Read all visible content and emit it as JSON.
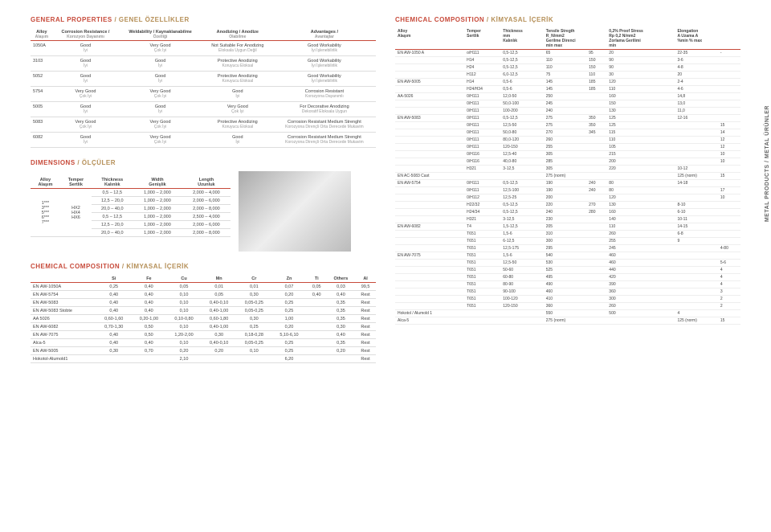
{
  "side_label": "METAL PRODUCTS / METAL ÜRÜNLER",
  "headings": {
    "gp": {
      "en": "GENERAL PROPERTIES",
      "tr": " / GENEL ÖZELLİKLER"
    },
    "dim": {
      "en": "DIMENSIONS",
      "tr": " / ÖLÇÜLER"
    },
    "comp": {
      "en": "CHEMICAL COMPOSITION",
      "tr": " / KİMYASAL İÇERİK"
    },
    "cc": {
      "en": "CHEMICAL COMPOSITION",
      "tr": " / KİMYASAL İÇERİK"
    }
  },
  "gp": {
    "cols": [
      {
        "en": "Alloy",
        "tr": "Alaşım"
      },
      {
        "en": "Corrosion Resistance /",
        "tr": "Korozyon Dayanımı"
      },
      {
        "en": "Weldability / Kaynaklanabilme",
        "tr": "Özelliği"
      },
      {
        "en": "Anodizing / Anodize",
        "tr": "Olabilme"
      },
      {
        "en": "Advantages /",
        "tr": "Avantajlar"
      }
    ],
    "rows": [
      {
        "a": "1050A",
        "cells": [
          "Good / İyi",
          "Very Good / Çok İyi",
          "Not Suitable For Anodizing / Eloksala Uygun Değil",
          "Good Workability / İyi İşlenebilirlik"
        ]
      },
      {
        "a": "3103",
        "cells": [
          "Good / İyi",
          "Good / İyi",
          "Protective Anodizing / Koruyucu Eloksal",
          "Good Workability / İyi İşlenebilirlik"
        ]
      },
      {
        "a": "5052",
        "cells": [
          "Good / İyi",
          "Good / İyi",
          "Protective Anodizing / Koruyucu Eloksal",
          "Good Workability / İyi İşlenebilirlik"
        ]
      },
      {
        "a": "5754",
        "cells": [
          "Very Good / Çok İyi",
          "Very Good / Çok İyi",
          "Good / İyi",
          "Corrosion Resistant / Korozyona Dayanımlı"
        ]
      },
      {
        "a": "5005",
        "cells": [
          "Good / İyi",
          "Good / İyi",
          "Very Good / Çok İyi",
          "For Decorative Anodizing / Dekoratif Eloksala Uygun"
        ]
      },
      {
        "a": "5083",
        "cells": [
          "Very Good / Çok İyi",
          "Very Good / Çok İyi",
          "Protective Anodizing / Koruyucu Eloksal",
          "Corrosion Resistant Medium Strenght / Korozyona Dirençli Orta Derecede Mukavim"
        ]
      },
      {
        "a": "6082",
        "cells": [
          "Good / İyi",
          "Very Good / Çok İyi",
          "Good / İyi",
          "Corrosion Resistant Medium Strenght / Korozyona Dirençli Orta Derecede Mukavim"
        ]
      }
    ]
  },
  "dim": {
    "cols": [
      {
        "en": "Alloy",
        "tr": "Alaşım"
      },
      {
        "en": "Temper",
        "tr": "Sertlik"
      },
      {
        "en": "Thickness",
        "tr": "Kalınlık"
      },
      {
        "en": "Width",
        "tr": "Genişlik"
      },
      {
        "en": "Length",
        "tr": "Uzunluk"
      }
    ],
    "alloys": "1*** 3*** 5*** 6*** 7***",
    "tempers": "HX2 HX4 HX6",
    "rows": [
      [
        "0,5 – 12,5",
        "1,000 – 2,000",
        "2,000 – 4,000"
      ],
      [
        "12,5 – 20,0",
        "1,000 – 2,000",
        "2,000 – 6,000"
      ],
      [
        "20,0 – 40,0",
        "1,000 – 2,000",
        "2,000 – 8,000"
      ],
      [
        "0,5 – 12,5",
        "1,000 – 2,000",
        "2,500 – 4,000"
      ],
      [
        "12,5 – 20,0",
        "1,000 – 2,000",
        "2,000 – 6,000"
      ],
      [
        "20,0 – 40,0",
        "1,000 – 2,000",
        "2,000 – 8,000"
      ]
    ]
  },
  "comp": {
    "cols": [
      "",
      "Si",
      "Fe",
      "Cu",
      "Mn",
      "Cr",
      "Zn",
      "Ti",
      "Others",
      "Al"
    ],
    "rows": [
      [
        "EN AW-1050A",
        "0,25",
        "0,40",
        "0,05",
        "0,01",
        "0,01",
        "0,07",
        "0,05",
        "0,03",
        "99,5"
      ],
      [
        "EN AW-5754",
        "0,40",
        "0,40",
        "0,10",
        "0,05",
        "0,30",
        "0,20",
        "0,40",
        "0,40",
        "Rest"
      ],
      [
        "EN AW-5083",
        "0,40",
        "0,40",
        "0,10",
        "0,40-0,10",
        "0,05-0,25",
        "0,25",
        "",
        "0,35",
        "Rest"
      ],
      [
        "EN AW-5083 Stobte",
        "0,40",
        "0,40",
        "0,10",
        "0,40-1,00",
        "0,05-0,25",
        "0,25",
        "",
        "0,35",
        "Rest"
      ],
      [
        "AA 5026",
        "0,60-1,60",
        "0,20-1,00",
        "0,10-0,80",
        "0,60-1,80",
        "0,30",
        "1,00",
        "",
        "0,35",
        "Rest"
      ],
      [
        "EN AW-6082",
        "0,70-1,30",
        "0,50",
        "0,10",
        "0,40-1,00",
        "0,25",
        "0,20",
        "",
        "0,30",
        "Rest"
      ],
      [
        "EN AW-7075",
        "0,40",
        "0,50",
        "1,20-2,00",
        "0,30",
        "0,18-0,28",
        "5,10-6,10",
        "",
        "0,40",
        "Rest"
      ],
      [
        "Alca-5",
        "0,40",
        "0,40",
        "0,10",
        "0,40-0,10",
        "0,05-0,25",
        "0,25",
        "",
        "0,35",
        "Rest"
      ],
      [
        "EN AW-5005",
        "0,30",
        "0,70",
        "0,20",
        "0,20",
        "0,10",
        "0,25",
        "",
        "0,20",
        "Rest"
      ],
      [
        "Hokotol-Alumold1",
        "",
        "",
        "2,10",
        "",
        "",
        "6,20",
        "",
        "",
        "Rest"
      ]
    ]
  },
  "cc": {
    "header": {
      "alloy": {
        "en": "Alloy",
        "tr": "Alaşım"
      },
      "temper": {
        "en": "Temper",
        "tr": "Sertlik"
      },
      "thick": {
        "en": "Thickness",
        "tr": "mm",
        "sub": "Kalınlık"
      },
      "tensile": {
        "en": "Tensile Stregth",
        "tr": "R_N/mm2",
        "sub": "Gerilme Direnci",
        "mm": "min    max"
      },
      "proof": {
        "en": "0,2% Proof Stress",
        "tr": "Rp 0,2 N/mm2",
        "sub": "Zorlama Gerilimi",
        "mm": "min"
      },
      "elong": {
        "en": "Elongation",
        "tr": "A  Uzama  A",
        "mm": "%min    % max"
      }
    },
    "rows": [
      [
        "EN AW-1050 A",
        "o/H111",
        "0,5-12,5",
        "65",
        "95",
        "20",
        "22-35",
        "-"
      ],
      [
        "",
        "H14",
        "0,5-12,5",
        "110",
        "150",
        "90",
        "3-6",
        ""
      ],
      [
        "",
        "H24",
        "0,5-12,5",
        "110",
        "150",
        "90",
        "4-8",
        ""
      ],
      [
        "",
        "H112",
        "6,0-12,5",
        "75",
        "110",
        "30",
        "20",
        ""
      ],
      [
        "EN AW-5005",
        "H14",
        "0,5-6",
        "145",
        "185",
        "120",
        "2-4",
        ""
      ],
      [
        "",
        "H24/H34",
        "0,5-6",
        "145",
        "185",
        "110",
        "4-6",
        ""
      ],
      [
        "AA-5026",
        "0/H111",
        "12,0-50",
        "250",
        "",
        "160",
        "14,8",
        ""
      ],
      [
        "",
        "0/H111",
        "50,0-100",
        "245",
        "",
        "150",
        "13,0",
        ""
      ],
      [
        "",
        "0/H111",
        "100-200",
        "240",
        "",
        "130",
        "11,0",
        ""
      ],
      [
        "EN AW-5083",
        "0/H111",
        "0,5-12,5",
        "275",
        "350",
        "125",
        "12-16",
        ""
      ],
      [
        "",
        "0/H111",
        "12,5-50",
        "275",
        "350",
        "125",
        "",
        "15"
      ],
      [
        "",
        "0/H111",
        "50,0-80",
        "270",
        "345",
        "115",
        "",
        "14"
      ],
      [
        "",
        "0/H111",
        "80,0-120",
        "260",
        "",
        "110",
        "",
        "12"
      ],
      [
        "",
        "0/H111",
        "120-150",
        "255",
        "",
        "105",
        "",
        "12"
      ],
      [
        "",
        "0/H116",
        "12,5-40",
        "305",
        "",
        "215",
        "",
        "10"
      ],
      [
        "",
        "0/H116",
        "40,0-80",
        "285",
        "",
        "200",
        "",
        "10"
      ],
      [
        "",
        "H321",
        "3-12,5",
        "305",
        "",
        "220",
        "10-12",
        ""
      ],
      [
        "EN AC-5083 Cast",
        "",
        "",
        "275 (norm)",
        "",
        "",
        "125 (norm)",
        "15"
      ],
      [
        "EN AW-5754",
        "0/H111",
        "0,5-12,5",
        "190",
        "240",
        "80",
        "14-18",
        ""
      ],
      [
        "",
        "0/H111",
        "12,5-100",
        "190",
        "240",
        "80",
        "",
        "17"
      ],
      [
        "",
        "0/H112",
        "12,5-25",
        "200",
        "",
        "120",
        "",
        "10"
      ],
      [
        "",
        "H22/32",
        "0,5-12,5",
        "220",
        "270",
        "130",
        "8-10",
        ""
      ],
      [
        "",
        "H24/34",
        "0,5-12,5",
        "240",
        "280",
        "160",
        "6-10",
        ""
      ],
      [
        "",
        "H321",
        "3-12,5",
        "230",
        "",
        "140",
        "10-11",
        ""
      ],
      [
        "EN AW-6082",
        "T4",
        "1,5-12,5",
        "205",
        "",
        "110",
        "14-15",
        ""
      ],
      [
        "",
        "T651",
        "1,5-6",
        "310",
        "",
        "260",
        "6-8",
        ""
      ],
      [
        "",
        "T651",
        "6-12,5",
        "300",
        "",
        "255",
        "9",
        ""
      ],
      [
        "",
        "T651",
        "12,5-175",
        "295",
        "",
        "245",
        "",
        "4-80"
      ],
      [
        "EN AW-7075",
        "T651",
        "1,5-6",
        "540",
        "",
        "460",
        "",
        ""
      ],
      [
        "",
        "T651",
        "12,5-50",
        "530",
        "",
        "460",
        "",
        "5-6"
      ],
      [
        "",
        "T651",
        "50-60",
        "525",
        "",
        "440",
        "",
        "4"
      ],
      [
        "",
        "T651",
        "60-80",
        "495",
        "",
        "420",
        "",
        "4"
      ],
      [
        "",
        "T651",
        "80-90",
        "490",
        "",
        "390",
        "",
        "4"
      ],
      [
        "",
        "T651",
        "90-100",
        "460",
        "",
        "360",
        "",
        "3"
      ],
      [
        "",
        "T651",
        "100-120",
        "410",
        "",
        "300",
        "",
        "2"
      ],
      [
        "",
        "T651",
        "120-150",
        "360",
        "",
        "260",
        "",
        "2"
      ],
      [
        "Hokotol / Alumold 1",
        "",
        "",
        "550",
        "",
        "500",
        "4",
        ""
      ],
      [
        "Alca-5",
        "",
        "",
        "275 (norm)",
        "",
        "",
        "125 (norm)",
        "15"
      ]
    ]
  }
}
